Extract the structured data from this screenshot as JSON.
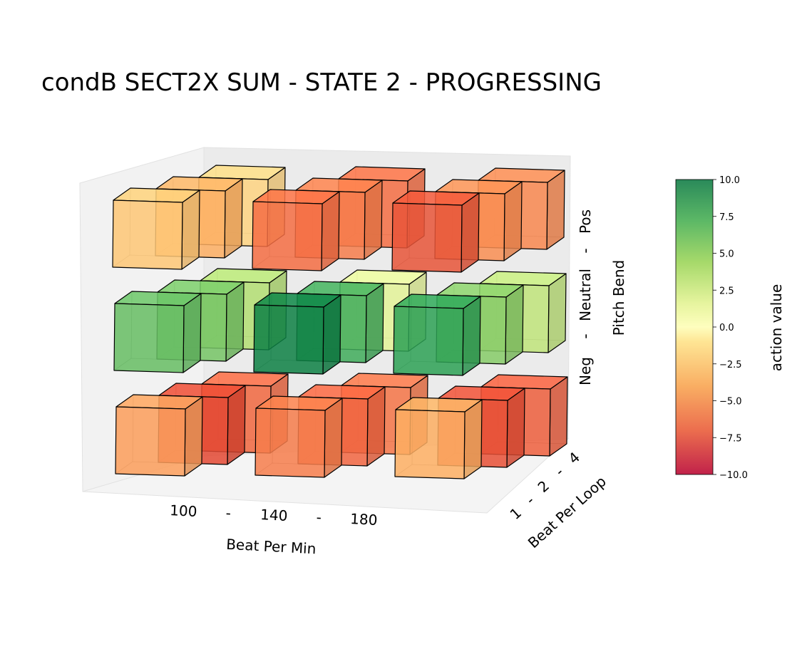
{
  "chart_data": {
    "type": "bar3d",
    "title": "condB SECT2X SUM - STATE 2 - PROGRESSING",
    "x_axis": {
      "label": "Beat Per Min",
      "ticks": [
        "100",
        "-",
        "140",
        "-",
        "180"
      ]
    },
    "y_axis": {
      "label": "Beat Per Loop",
      "ticks": [
        "1",
        "-",
        "2",
        "-",
        "4"
      ]
    },
    "z_axis": {
      "label": "Pitch Bend",
      "ticks": [
        "Neg",
        "-",
        "Neutral",
        "-",
        "Pos"
      ]
    },
    "colorbar": {
      "label": "action value",
      "range": [
        -10,
        10
      ],
      "ticks": [
        "10.0",
        "7.5",
        "5.0",
        "2.5",
        "0.0",
        "−2.5",
        "−5.0",
        "−7.5",
        "−10.0"
      ],
      "colormap": "RdYlGn"
    },
    "x_categories": [
      "100",
      "140",
      "180"
    ],
    "y_categories": [
      "1",
      "2",
      "4"
    ],
    "z_categories": [
      "Neg",
      "Neutral",
      "Pos"
    ],
    "values": [
      {
        "bpm": "100",
        "bpl": "1",
        "pitch": "Neg",
        "value": -4.5
      },
      {
        "bpm": "100",
        "bpl": "2",
        "pitch": "Neg",
        "value": -7.2
      },
      {
        "bpm": "100",
        "bpl": "4",
        "pitch": "Neg",
        "value": -6.2
      },
      {
        "bpm": "140",
        "bpl": "1",
        "pitch": "Neg",
        "value": -5.5
      },
      {
        "bpm": "140",
        "bpl": "2",
        "pitch": "Neg",
        "value": -6.3
      },
      {
        "bpm": "140",
        "bpl": "4",
        "pitch": "Neg",
        "value": -5.8
      },
      {
        "bpm": "180",
        "bpl": "1",
        "pitch": "Neg",
        "value": -4.0
      },
      {
        "bpm": "180",
        "bpl": "2",
        "pitch": "Neg",
        "value": -7.0
      },
      {
        "bpm": "180",
        "bpl": "4",
        "pitch": "Neg",
        "value": -6.5
      },
      {
        "bpm": "100",
        "bpl": "1",
        "pitch": "Neutral",
        "value": 6.0
      },
      {
        "bpm": "100",
        "bpl": "2",
        "pitch": "Neutral",
        "value": 5.5
      },
      {
        "bpm": "100",
        "bpl": "4",
        "pitch": "Neutral",
        "value": 3.5
      },
      {
        "bpm": "140",
        "bpl": "1",
        "pitch": "Neutral",
        "value": 9.0
      },
      {
        "bpm": "140",
        "bpl": "2",
        "pitch": "Neutral",
        "value": 7.0
      },
      {
        "bpm": "140",
        "bpl": "4",
        "pitch": "Neutral",
        "value": 1.5
      },
      {
        "bpm": "180",
        "bpl": "1",
        "pitch": "Neutral",
        "value": 7.5
      },
      {
        "bpm": "180",
        "bpl": "2",
        "pitch": "Neutral",
        "value": 5.0
      },
      {
        "bpm": "180",
        "bpl": "4",
        "pitch": "Neutral",
        "value": 3.0
      },
      {
        "bpm": "100",
        "bpl": "1",
        "pitch": "Pos",
        "value": -3.0
      },
      {
        "bpm": "100",
        "bpl": "2",
        "pitch": "Pos",
        "value": -4.0
      },
      {
        "bpm": "100",
        "bpl": "4",
        "pitch": "Pos",
        "value": -2.5
      },
      {
        "bpm": "140",
        "bpl": "1",
        "pitch": "Pos",
        "value": -6.0
      },
      {
        "bpm": "140",
        "bpl": "2",
        "pitch": "Pos",
        "value": -5.5
      },
      {
        "bpm": "140",
        "bpl": "4",
        "pitch": "Pos",
        "value": -6.0
      },
      {
        "bpm": "180",
        "bpl": "1",
        "pitch": "Pos",
        "value": -6.8
      },
      {
        "bpm": "180",
        "bpl": "2",
        "pitch": "Pos",
        "value": -5.0
      },
      {
        "bpm": "180",
        "bpl": "4",
        "pitch": "Pos",
        "value": -5.2
      }
    ]
  }
}
